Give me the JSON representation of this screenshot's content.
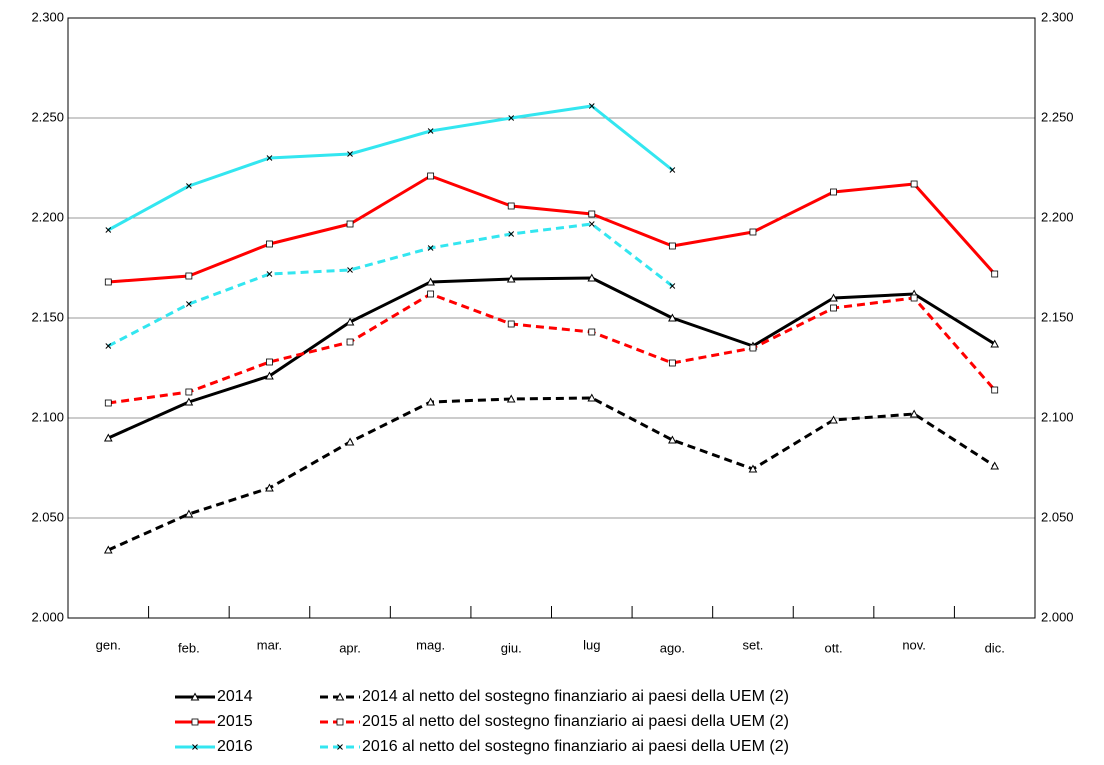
{
  "chart_data": {
    "type": "line",
    "categories": [
      "gen.",
      "feb.",
      "mar.",
      "apr.",
      "mag.",
      "giu.",
      "lug",
      "ago.",
      "set.",
      "ott.",
      "nov.",
      "dic."
    ],
    "ylim": [
      2000,
      2300
    ],
    "yticks": [
      {
        "value": 2000,
        "label": "2.000"
      },
      {
        "value": 2050,
        "label": "2.050"
      },
      {
        "value": 2100,
        "label": "2.100"
      },
      {
        "value": 2150,
        "label": "2.150"
      },
      {
        "value": 2200,
        "label": "2.200"
      },
      {
        "value": 2250,
        "label": "2.250"
      },
      {
        "value": 2300,
        "label": "2.300"
      }
    ],
    "grid": true,
    "series": [
      {
        "name": "2014",
        "color": "#000000",
        "dash": false,
        "marker": "triangle",
        "values": [
          2090,
          2108,
          2121,
          2148,
          2168,
          2169.5,
          2170,
          2150,
          2136,
          2160,
          2162,
          2137
        ]
      },
      {
        "name": "2014 al netto del sostegno finanziario ai paesi della UEM (2)",
        "color": "#000000",
        "dash": true,
        "marker": "triangle",
        "values": [
          2034,
          2052,
          2065,
          2088,
          2108,
          2109.5,
          2110,
          2089,
          2074.5,
          2099,
          2102,
          2076
        ]
      },
      {
        "name": "2015",
        "color": "#ff0000",
        "dash": false,
        "marker": "square",
        "values": [
          2168,
          2171,
          2187,
          2197,
          2221,
          2206,
          2202,
          2186,
          2193,
          2213,
          2217,
          2172
        ]
      },
      {
        "name": "2015 al netto del sostegno finanziario ai paesi della UEM (2)",
        "color": "#ff0000",
        "dash": true,
        "marker": "square",
        "values": [
          2107.5,
          2113,
          2128,
          2138,
          2162,
          2147,
          2143,
          2127.5,
          2135,
          2155,
          2160,
          2114
        ]
      },
      {
        "name": "2016",
        "color": "#33e6f0",
        "dash": false,
        "marker": "x",
        "values": [
          2194,
          2216,
          2230,
          2232,
          2243.5,
          2250,
          2256,
          2224,
          null,
          null,
          null,
          null
        ]
      },
      {
        "name": "2016 al netto del sostegno finanziario ai paesi della UEM (2)",
        "color": "#33e6f0",
        "dash": true,
        "marker": "x",
        "values": [
          2136,
          2157,
          2172,
          2174,
          2185,
          2192,
          2197,
          2166,
          null,
          null,
          null,
          null
        ]
      }
    ]
  }
}
